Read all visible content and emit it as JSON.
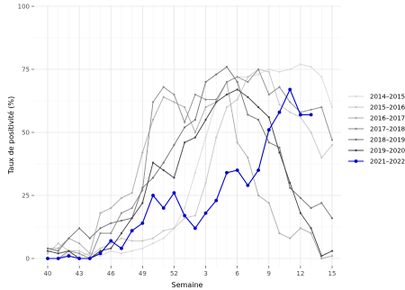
{
  "chart_data": {
    "type": "line",
    "xlabel": "Semaine",
    "ylabel": "Taux de positivité (%)",
    "ylim": [
      0,
      100
    ],
    "grid": true,
    "legend_position": "right",
    "x": [
      40,
      41,
      42,
      43,
      44,
      45,
      46,
      47,
      48,
      49,
      50,
      51,
      52,
      1,
      2,
      3,
      4,
      5,
      6,
      7,
      8,
      9,
      10,
      11,
      12,
      13,
      14,
      15
    ],
    "x_tick_labels": [
      "40",
      "43",
      "46",
      "49",
      "52",
      "3",
      "6",
      "9",
      "12",
      "15"
    ],
    "y_tick_labels": [
      "0",
      "25",
      "50",
      "75",
      "100"
    ],
    "series": [
      {
        "name": "2014–2015",
        "color": "#d9d9d9",
        "values": [
          0,
          0,
          2,
          1,
          2,
          1,
          3,
          2,
          3,
          4,
          6,
          8,
          12,
          20,
          34,
          48,
          62,
          70,
          72,
          72,
          73,
          75,
          74,
          75,
          77,
          76,
          72,
          60
        ]
      },
      {
        "name": "2015–2016",
        "color": "#c6c6c6",
        "values": [
          2,
          6,
          3,
          3,
          1,
          4,
          6,
          8,
          7,
          7,
          8,
          11,
          12,
          16,
          17,
          30,
          48,
          60,
          63,
          72,
          75,
          74,
          61,
          58,
          56,
          50,
          40,
          45
        ]
      },
      {
        "name": "2016–2017",
        "color": "#ababab",
        "values": [
          4,
          4,
          8,
          6,
          2,
          18,
          20,
          24,
          26,
          42,
          55,
          64,
          62,
          60,
          50,
          60,
          62,
          70,
          46,
          40,
          25,
          22,
          10,
          8,
          12,
          10,
          0,
          1
        ]
      },
      {
        "name": "2017–2018",
        "color": "#8c8c8c",
        "values": [
          0,
          0,
          3,
          2,
          0,
          10,
          10,
          18,
          20,
          27,
          62,
          68,
          65,
          54,
          65,
          63,
          63,
          70,
          72,
          70,
          75,
          65,
          68,
          62,
          58,
          59,
          60,
          47
        ]
      },
      {
        "name": "2018–2019",
        "color": "#737373",
        "values": [
          4,
          3,
          8,
          12,
          8,
          12,
          14,
          15,
          16,
          28,
          32,
          38,
          45,
          52,
          55,
          70,
          73,
          76,
          70,
          57,
          55,
          46,
          44,
          28,
          24,
          20,
          22,
          16
        ]
      },
      {
        "name": "2019–2020",
        "color": "#404040",
        "values": [
          3,
          2,
          3,
          0,
          0,
          3,
          4,
          10,
          16,
          22,
          38,
          35,
          32,
          46,
          48,
          55,
          62,
          65,
          67,
          64,
          60,
          56,
          42,
          30,
          18,
          12,
          1,
          3
        ]
      },
      {
        "name": "2021–2022",
        "color": "#0000cd",
        "values": [
          0,
          0,
          1,
          0,
          0,
          2,
          7,
          4,
          11,
          14,
          25,
          20,
          26,
          17,
          12,
          18,
          23,
          34,
          35,
          29,
          35,
          51,
          58,
          67,
          57,
          57,
          null,
          null
        ]
      }
    ]
  }
}
